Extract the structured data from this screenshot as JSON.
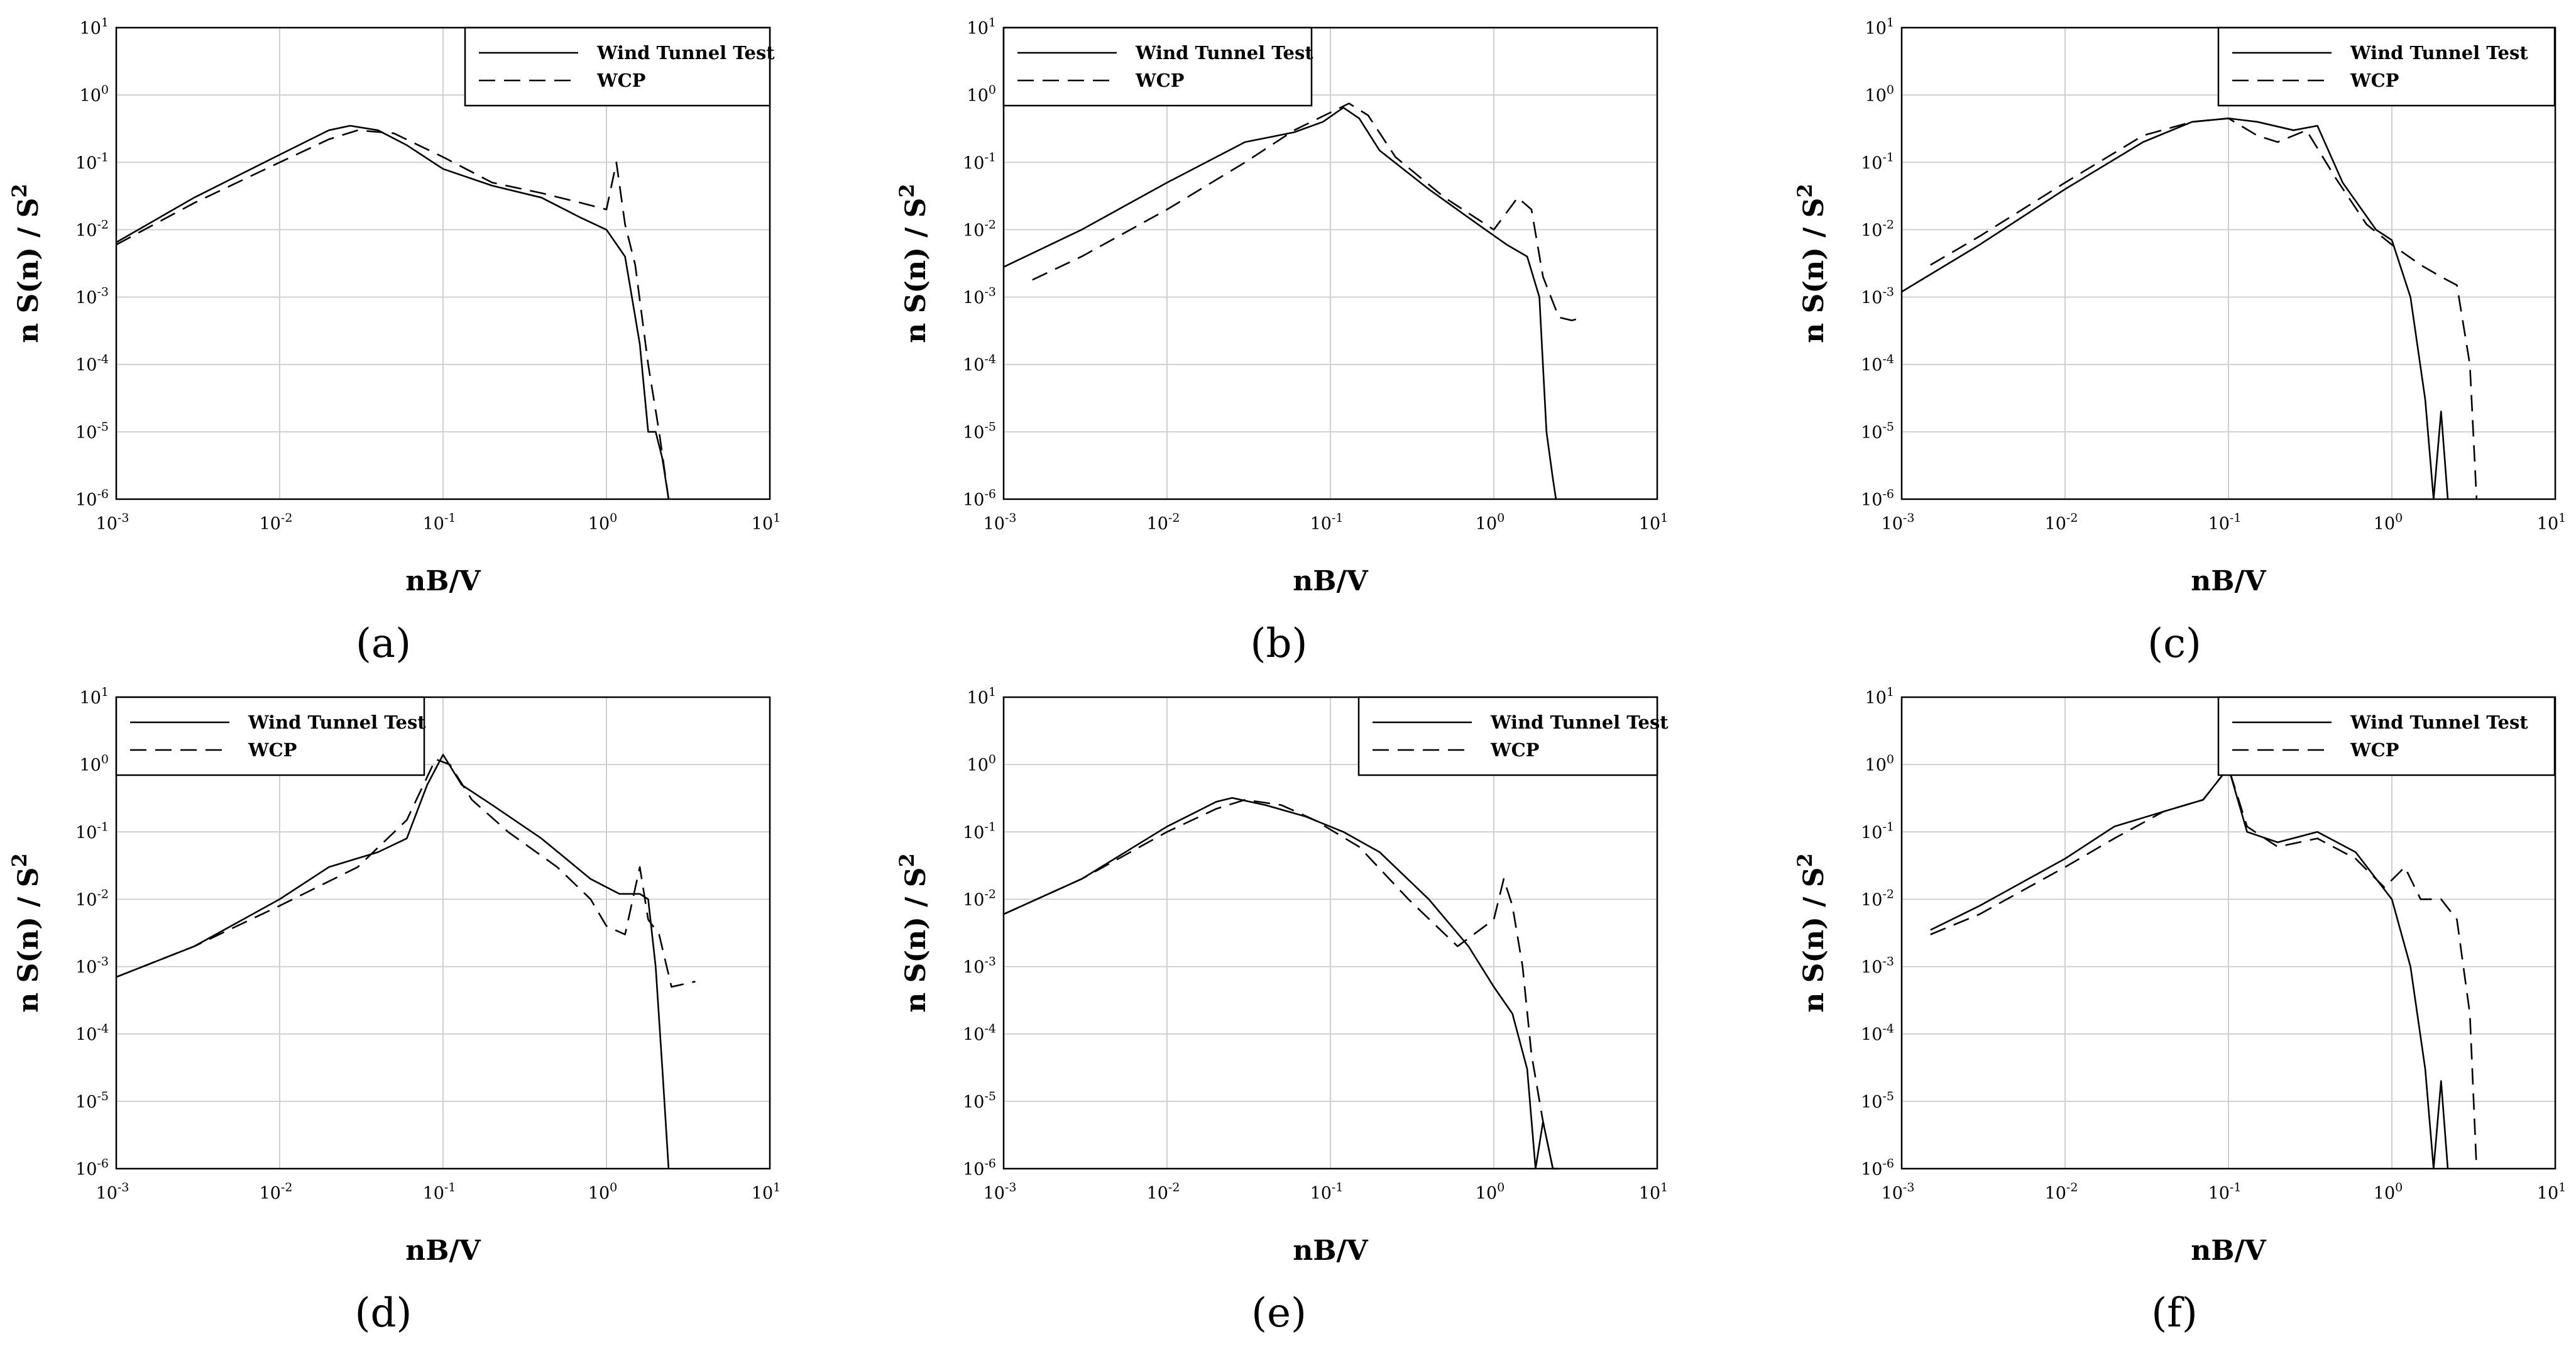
{
  "figure": {
    "captions": [
      "(a)",
      "(b)",
      "(c)",
      "(d)",
      "(e)",
      "(f)"
    ]
  },
  "chart_data": [
    {
      "id": "a",
      "caption": "(a)",
      "type": "line",
      "xlabel": "nB/V",
      "ylabel": "n S(n) / S",
      "ylabel_exponent": "2",
      "x_scale": "log",
      "y_scale": "log",
      "xlim": [
        0.001,
        10
      ],
      "ylim": [
        1e-06,
        10
      ],
      "x_tick_labels": [
        "10-3",
        "10-2",
        "10-1",
        "100",
        "101"
      ],
      "y_tick_labels": [
        "10-6",
        "10-5",
        "10-4",
        "10-3",
        "10-2",
        "10-1",
        "100",
        "101"
      ],
      "legend_position": "top-right",
      "series": [
        {
          "name": "Wind Tunnel Test",
          "style": "solid",
          "x": [
            0.001,
            0.003,
            0.01,
            0.02,
            0.027,
            0.04,
            0.06,
            0.1,
            0.2,
            0.4,
            0.7,
            1.0,
            1.3,
            1.6,
            1.8,
            2.0,
            2.2,
            2.4
          ],
          "y": [
            0.0065,
            0.03,
            0.13,
            0.3,
            0.35,
            0.3,
            0.18,
            0.08,
            0.045,
            0.03,
            0.015,
            0.01,
            0.004,
            0.0002,
            1e-05,
            1e-05,
            4e-06,
            1e-06
          ]
        },
        {
          "name": "WCP",
          "style": "dashed",
          "x": [
            0.001,
            0.003,
            0.01,
            0.02,
            0.03,
            0.05,
            0.1,
            0.2,
            0.4,
            0.7,
            1.0,
            1.15,
            1.3,
            1.5,
            1.8,
            2.1,
            2.4
          ],
          "y": [
            0.006,
            0.025,
            0.1,
            0.22,
            0.3,
            0.27,
            0.12,
            0.05,
            0.035,
            0.025,
            0.02,
            0.1,
            0.012,
            0.003,
            0.0001,
            1e-05,
            1e-06
          ]
        }
      ]
    },
    {
      "id": "b",
      "caption": "(b)",
      "type": "line",
      "xlabel": "nB/V",
      "ylabel": "n S(n) / S",
      "ylabel_exponent": "2",
      "x_scale": "log",
      "y_scale": "log",
      "xlim": [
        0.001,
        10
      ],
      "ylim": [
        1e-06,
        10
      ],
      "x_tick_labels": [
        "10-3",
        "10-2",
        "10-1",
        "100",
        "101"
      ],
      "y_tick_labels": [
        "10-6",
        "10-5",
        "10-4",
        "10-3",
        "10-2",
        "10-1",
        "100",
        "101"
      ],
      "legend_position": "top-right",
      "series": [
        {
          "name": "Wind Tunnel Test",
          "style": "solid",
          "x": [
            0.001,
            0.003,
            0.01,
            0.03,
            0.06,
            0.09,
            0.12,
            0.15,
            0.2,
            0.4,
            0.8,
            1.2,
            1.6,
            1.9,
            2.1,
            2.3,
            2.4
          ],
          "y": [
            0.0028,
            0.01,
            0.05,
            0.2,
            0.28,
            0.4,
            0.65,
            0.45,
            0.15,
            0.04,
            0.012,
            0.006,
            0.004,
            0.001,
            1e-05,
            2e-06,
            1e-06
          ]
        },
        {
          "name": "WCP",
          "style": "dashed",
          "x": [
            0.0015,
            0.003,
            0.01,
            0.03,
            0.06,
            0.1,
            0.13,
            0.17,
            0.25,
            0.5,
            1.0,
            1.4,
            1.7,
            2.0,
            2.5,
            3.0,
            3.5
          ],
          "y": [
            0.0018,
            0.004,
            0.02,
            0.1,
            0.3,
            0.55,
            0.75,
            0.5,
            0.12,
            0.03,
            0.01,
            0.03,
            0.02,
            0.002,
            0.0005,
            0.00045,
            0.0005
          ]
        }
      ]
    },
    {
      "id": "c",
      "caption": "(c)",
      "type": "line",
      "xlabel": "nB/V",
      "ylabel": "n S(n) / S",
      "ylabel_exponent": "2",
      "x_scale": "log",
      "y_scale": "log",
      "xlim": [
        0.001,
        10
      ],
      "ylim": [
        1e-06,
        10
      ],
      "x_tick_labels": [
        "10-3",
        "10-2",
        "10-1",
        "100",
        "101"
      ],
      "y_tick_labels": [
        "10-6",
        "10-5",
        "10-4",
        "10-3",
        "10-2",
        "10-1",
        "100",
        "101"
      ],
      "legend_position": "top-right",
      "series": [
        {
          "name": "Wind Tunnel Test",
          "style": "solid",
          "x": [
            0.001,
            0.003,
            0.01,
            0.03,
            0.06,
            0.1,
            0.15,
            0.25,
            0.35,
            0.5,
            0.8,
            1.0,
            1.3,
            1.6,
            1.8,
            2.0,
            2.2
          ],
          "y": [
            0.0012,
            0.006,
            0.04,
            0.2,
            0.4,
            0.45,
            0.4,
            0.3,
            0.35,
            0.05,
            0.01,
            0.007,
            0.001,
            3e-05,
            1e-06,
            2e-05,
            1e-06
          ]
        },
        {
          "name": "WCP",
          "style": "dashed",
          "x": [
            0.0015,
            0.003,
            0.01,
            0.03,
            0.06,
            0.1,
            0.15,
            0.2,
            0.3,
            0.45,
            0.7,
            1.0,
            1.5,
            2.0,
            2.5,
            3.0,
            3.3
          ],
          "y": [
            0.003,
            0.008,
            0.05,
            0.25,
            0.4,
            0.45,
            0.25,
            0.2,
            0.3,
            0.06,
            0.012,
            0.006,
            0.003,
            0.002,
            0.0015,
            0.0001,
            1e-06
          ]
        }
      ]
    },
    {
      "id": "d",
      "caption": "(d)",
      "type": "line",
      "xlabel": "nB/V",
      "ylabel": "n S(n) / S",
      "ylabel_exponent": "2",
      "x_scale": "log",
      "y_scale": "log",
      "xlim": [
        0.001,
        10
      ],
      "ylim": [
        1e-06,
        10
      ],
      "x_tick_labels": [
        "10-3",
        "10-2",
        "10-1",
        "100",
        "101"
      ],
      "y_tick_labels": [
        "10-6",
        "10-5",
        "10-4",
        "10-3",
        "10-2",
        "10-1",
        "100",
        "101"
      ],
      "legend_position": "top-left",
      "series": [
        {
          "name": "Wind Tunnel Test",
          "style": "solid",
          "x": [
            0.001,
            0.003,
            0.01,
            0.02,
            0.04,
            0.06,
            0.08,
            0.1,
            0.13,
            0.2,
            0.4,
            0.8,
            1.2,
            1.6,
            1.8,
            2.0,
            2.2,
            2.4
          ],
          "y": [
            0.0007,
            0.002,
            0.01,
            0.03,
            0.05,
            0.08,
            0.5,
            1.4,
            0.5,
            0.25,
            0.08,
            0.02,
            0.012,
            0.012,
            0.01,
            0.001,
            3e-05,
            1e-06
          ]
        },
        {
          "name": "WCP",
          "style": "dashed",
          "x": [
            0.001,
            0.003,
            0.01,
            0.03,
            0.06,
            0.09,
            0.11,
            0.15,
            0.25,
            0.5,
            0.8,
            1.0,
            1.3,
            1.6,
            1.8,
            2.1,
            2.5,
            3.5
          ],
          "y": [
            0.0007,
            0.002,
            0.008,
            0.03,
            0.15,
            1.2,
            1.0,
            0.3,
            0.1,
            0.03,
            0.01,
            0.004,
            0.003,
            0.03,
            0.005,
            0.003,
            0.0005,
            0.0006
          ]
        }
      ]
    },
    {
      "id": "e",
      "caption": "(e)",
      "type": "line",
      "xlabel": "nB/V",
      "ylabel": "n S(n) / S",
      "ylabel_exponent": "2",
      "x_scale": "log",
      "y_scale": "log",
      "xlim": [
        0.001,
        10
      ],
      "ylim": [
        1e-06,
        10
      ],
      "x_tick_labels": [
        "10-3",
        "10-2",
        "10-1",
        "100",
        "101"
      ],
      "y_tick_labels": [
        "10-6",
        "10-5",
        "10-4",
        "10-3",
        "10-2",
        "10-1",
        "100",
        "101"
      ],
      "legend_position": "top-right",
      "series": [
        {
          "name": "Wind Tunnel Test",
          "style": "solid",
          "x": [
            0.001,
            0.003,
            0.01,
            0.02,
            0.025,
            0.04,
            0.07,
            0.12,
            0.2,
            0.4,
            0.7,
            1.0,
            1.3,
            1.6,
            1.8,
            2.0,
            2.3,
            2.4
          ],
          "y": [
            0.006,
            0.02,
            0.12,
            0.28,
            0.32,
            0.25,
            0.17,
            0.1,
            0.05,
            0.01,
            0.002,
            0.0005,
            0.0002,
            3e-05,
            1e-06,
            5e-06,
            1e-06,
            1e-06
          ]
        },
        {
          "name": "WCP",
          "style": "dashed",
          "x": [
            0.001,
            0.003,
            0.01,
            0.02,
            0.03,
            0.05,
            0.08,
            0.15,
            0.3,
            0.6,
            1.0,
            1.15,
            1.3,
            1.5,
            1.7,
            2.0,
            2.3,
            2.5
          ],
          "y": [
            0.006,
            0.02,
            0.1,
            0.22,
            0.3,
            0.25,
            0.15,
            0.06,
            0.01,
            0.002,
            0.005,
            0.02,
            0.008,
            0.001,
            5e-05,
            5e-06,
            1e-06,
            1e-06
          ]
        }
      ]
    },
    {
      "id": "f",
      "caption": "(f)",
      "type": "line",
      "xlabel": "nB/V",
      "ylabel": "n S(n) / S",
      "ylabel_exponent": "2",
      "x_scale": "log",
      "y_scale": "log",
      "xlim": [
        0.001,
        10
      ],
      "ylim": [
        1e-06,
        10
      ],
      "x_tick_labels": [
        "10-3",
        "10-2",
        "10-1",
        "100",
        "101"
      ],
      "y_tick_labels": [
        "10-6",
        "10-5",
        "10-4",
        "10-3",
        "10-2",
        "10-1",
        "100",
        "101"
      ],
      "legend_position": "top-right",
      "series": [
        {
          "name": "Wind Tunnel Test",
          "style": "solid",
          "x": [
            0.0015,
            0.003,
            0.01,
            0.02,
            0.04,
            0.07,
            0.1,
            0.13,
            0.2,
            0.35,
            0.6,
            1.0,
            1.3,
            1.6,
            1.8,
            2.0,
            2.2
          ],
          "y": [
            0.0035,
            0.008,
            0.04,
            0.12,
            0.2,
            0.3,
            0.9,
            0.1,
            0.07,
            0.1,
            0.05,
            0.01,
            0.001,
            3e-05,
            1e-06,
            2e-05,
            1e-06
          ]
        },
        {
          "name": "WCP",
          "style": "dashed",
          "x": [
            0.0015,
            0.003,
            0.01,
            0.02,
            0.04,
            0.07,
            0.1,
            0.13,
            0.2,
            0.35,
            0.6,
            0.9,
            1.2,
            1.5,
            2.0,
            2.5,
            3.0,
            3.3
          ],
          "y": [
            0.003,
            0.006,
            0.03,
            0.08,
            0.2,
            0.3,
            0.9,
            0.12,
            0.06,
            0.08,
            0.04,
            0.015,
            0.03,
            0.01,
            0.01,
            0.005,
            0.0002,
            1e-06
          ]
        }
      ]
    }
  ]
}
